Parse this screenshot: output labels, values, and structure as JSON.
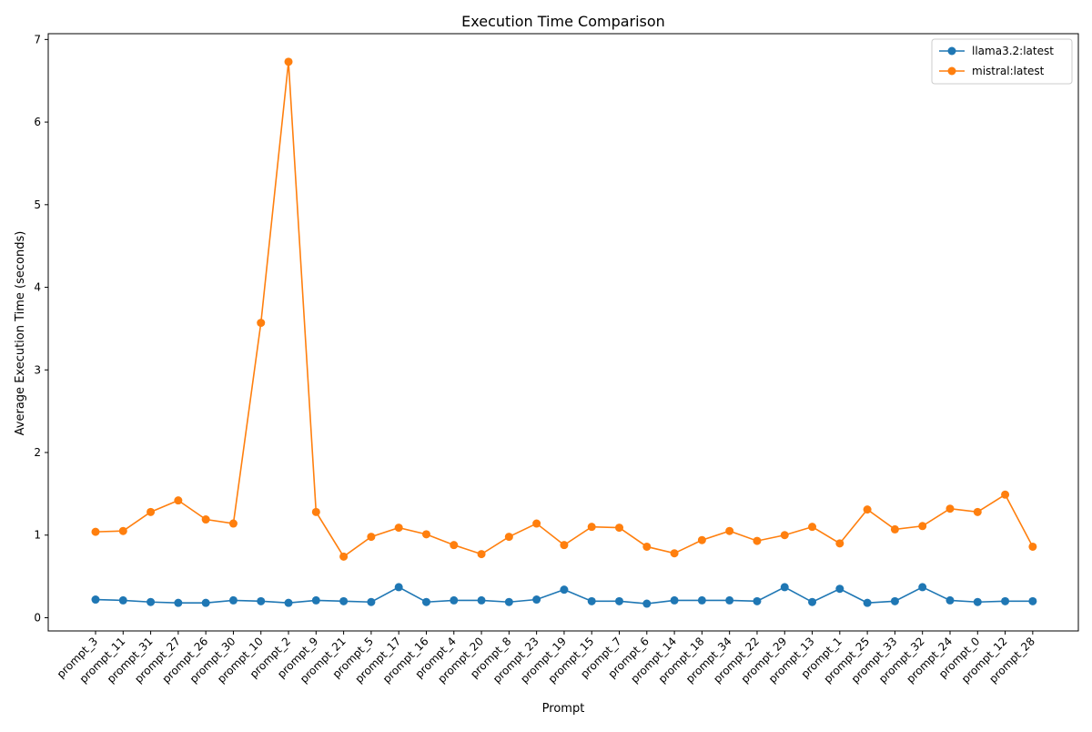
{
  "chart_data": {
    "type": "line",
    "title": "Execution Time Comparison",
    "xlabel": "Prompt",
    "ylabel": "Average Execution Time (seconds)",
    "ylim": [
      -0.16,
      7.07
    ],
    "yticks": [
      0,
      1,
      2,
      3,
      4,
      5,
      6,
      7
    ],
    "grid": false,
    "legend_position": "top-right",
    "categories": [
      "prompt_3",
      "prompt_11",
      "prompt_31",
      "prompt_27",
      "prompt_26",
      "prompt_30",
      "prompt_10",
      "prompt_2",
      "prompt_9",
      "prompt_21",
      "prompt_5",
      "prompt_17",
      "prompt_16",
      "prompt_4",
      "prompt_20",
      "prompt_8",
      "prompt_23",
      "prompt_19",
      "prompt_15",
      "prompt_7",
      "prompt_6",
      "prompt_14",
      "prompt_18",
      "prompt_34",
      "prompt_22",
      "prompt_29",
      "prompt_13",
      "prompt_1",
      "prompt_25",
      "prompt_33",
      "prompt_32",
      "prompt_24",
      "prompt_0",
      "prompt_12",
      "prompt_28"
    ],
    "series": [
      {
        "name": "llama3.2:latest",
        "color": "#1f77b4",
        "values": [
          0.22,
          0.21,
          0.19,
          0.18,
          0.18,
          0.21,
          0.2,
          0.18,
          0.21,
          0.2,
          0.19,
          0.37,
          0.19,
          0.21,
          0.21,
          0.19,
          0.22,
          0.34,
          0.2,
          0.2,
          0.17,
          0.21,
          0.21,
          0.21,
          0.2,
          0.37,
          0.19,
          0.35,
          0.18,
          0.2,
          0.37,
          0.21,
          0.19,
          0.2,
          0.2
        ]
      },
      {
        "name": "mistral:latest",
        "color": "#ff7f0e",
        "values": [
          1.04,
          1.05,
          1.28,
          1.42,
          1.19,
          1.14,
          3.57,
          6.73,
          1.28,
          0.74,
          0.98,
          1.09,
          1.01,
          0.88,
          0.77,
          0.98,
          1.14,
          0.88,
          1.1,
          1.09,
          0.86,
          0.78,
          0.94,
          1.05,
          0.93,
          1.0,
          1.1,
          0.9,
          1.31,
          1.07,
          1.11,
          1.32,
          1.28,
          1.49,
          0.86
        ]
      }
    ]
  }
}
